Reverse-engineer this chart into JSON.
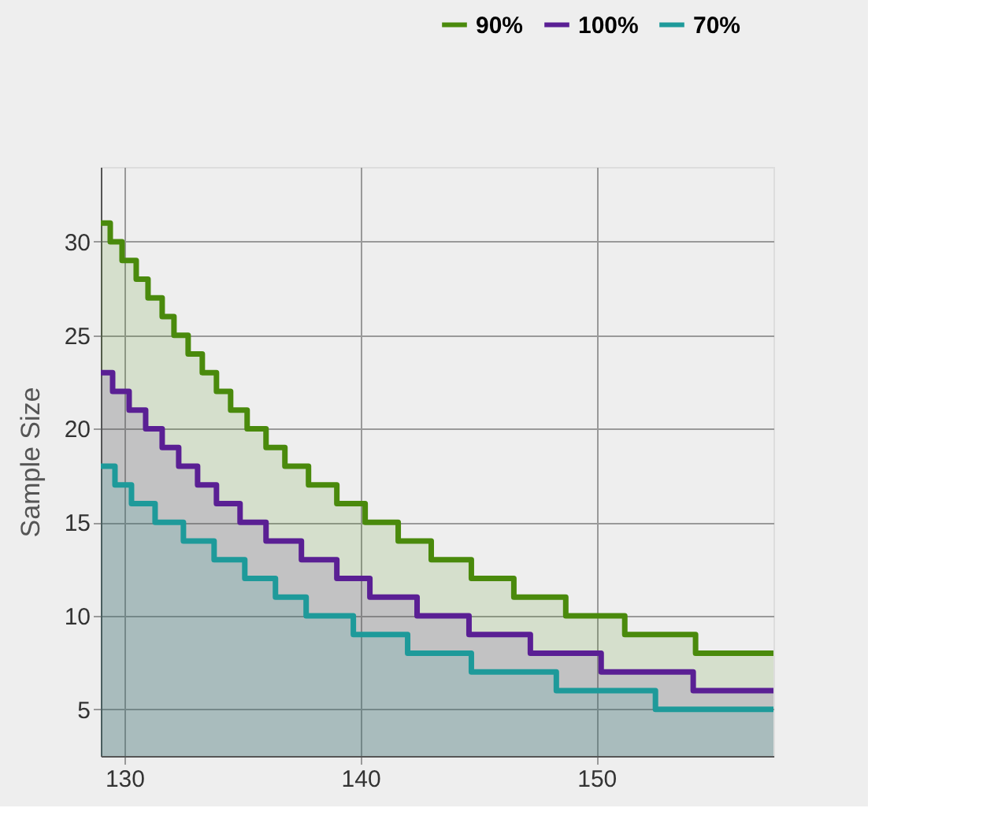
{
  "chart_data": {
    "type": "line",
    "ylabel": "Sample Size",
    "xlim": [
      129,
      157.5
    ],
    "ylim": [
      2.5,
      34
    ],
    "xticks": [
      130,
      140,
      150
    ],
    "yticks": [
      5,
      10,
      15,
      20,
      25,
      30
    ],
    "grid": true,
    "legend": "top right",
    "line_style": "solid",
    "marker": "none",
    "series": [
      {
        "name": "90%",
        "type": "area",
        "color": "#4a8a0c",
        "x": [
          129,
          129.4,
          129.4,
          129.9,
          129.9,
          130.5,
          130.5,
          131.0,
          131.0,
          131.6,
          131.6,
          132.1,
          132.1,
          132.7,
          132.7,
          133.3,
          133.3,
          133.9,
          133.9,
          134.5,
          134.5,
          135.2,
          135.2,
          136.0,
          136.0,
          136.8,
          136.8,
          137.8,
          137.8,
          139.0,
          139.0,
          140.2,
          140.2,
          141.6,
          141.6,
          143.0,
          143.0,
          144.7,
          144.7,
          146.5,
          146.5,
          148.7,
          148.7,
          151.2,
          151.2,
          154.2,
          154.2,
          157.5
        ],
        "values": [
          31,
          31,
          30,
          30,
          29,
          29,
          28,
          28,
          27,
          27,
          26,
          26,
          25,
          25,
          24,
          24,
          23,
          23,
          22,
          22,
          21,
          21,
          20,
          20,
          19,
          19,
          18,
          18,
          17,
          17,
          16,
          16,
          15,
          15,
          14,
          14,
          13,
          13,
          12,
          12,
          11,
          11,
          10,
          10,
          9,
          9,
          8,
          8
        ]
      },
      {
        "name": "100%",
        "type": "area",
        "color": "#5a1f94",
        "x": [
          129,
          129.5,
          129.5,
          130.2,
          130.2,
          130.9,
          130.9,
          131.6,
          131.6,
          132.3,
          132.3,
          133.1,
          133.1,
          133.9,
          133.9,
          134.9,
          134.9,
          136.0,
          136.0,
          137.5,
          137.5,
          139.0,
          139.0,
          140.4,
          140.4,
          142.4,
          142.4,
          144.6,
          144.6,
          147.2,
          147.2,
          150.2,
          150.2,
          154.1,
          154.1,
          157.5
        ],
        "values": [
          23,
          23,
          22,
          22,
          21,
          21,
          20,
          20,
          19,
          19,
          18,
          18,
          17,
          17,
          16,
          16,
          15,
          15,
          14,
          14,
          13,
          13,
          12,
          12,
          11,
          11,
          10,
          10,
          9,
          9,
          8,
          8,
          7,
          7,
          6,
          6
        ]
      },
      {
        "name": "70%",
        "type": "area",
        "color": "#1e9a9a",
        "x": [
          129,
          129.6,
          129.6,
          130.3,
          130.3,
          131.3,
          131.3,
          132.5,
          132.5,
          133.8,
          133.8,
          135.1,
          135.1,
          136.4,
          136.4,
          137.7,
          137.7,
          139.7,
          139.7,
          142.0,
          142.0,
          144.7,
          144.7,
          148.3,
          148.3,
          152.5,
          152.5,
          157.5
        ],
        "values": [
          18,
          18,
          17,
          17,
          16,
          16,
          15,
          15,
          14,
          14,
          13,
          13,
          12,
          12,
          11,
          11,
          10,
          10,
          9,
          9,
          8,
          8,
          7,
          7,
          6,
          6,
          5,
          5
        ]
      }
    ]
  }
}
